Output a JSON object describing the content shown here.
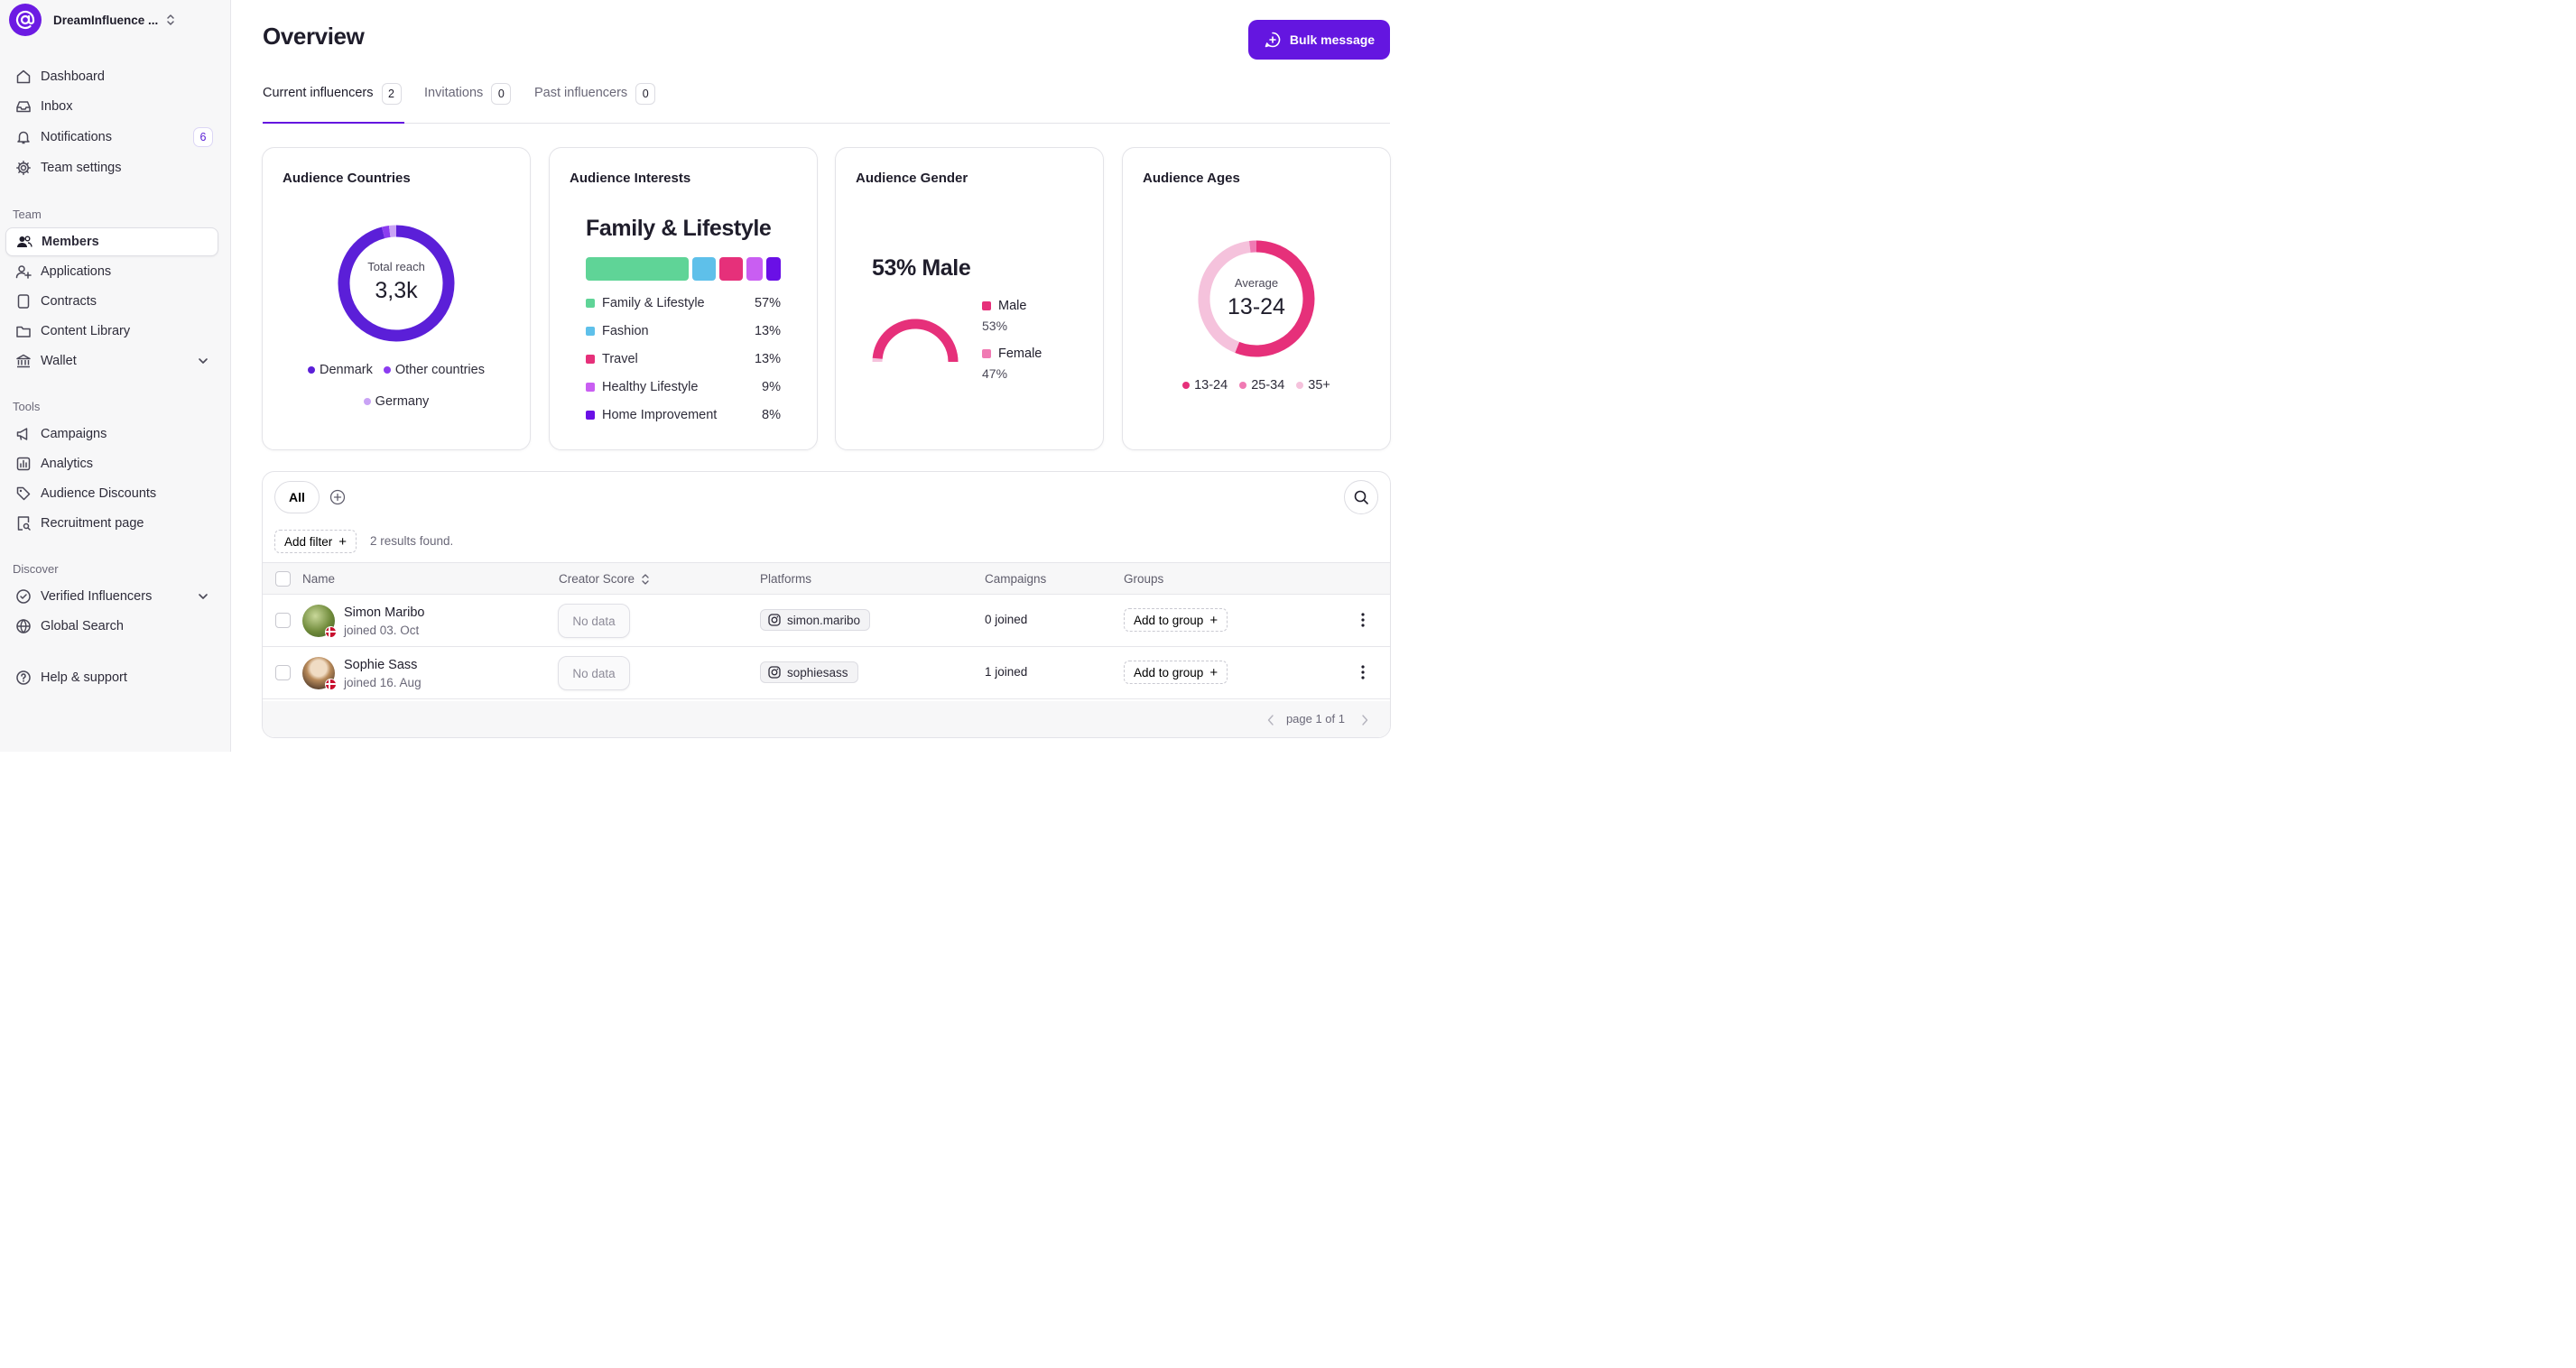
{
  "brand": {
    "name": "DreamInfluence ..."
  },
  "nav": {
    "main": [
      {
        "label": "Dashboard",
        "icon": "home-icon"
      },
      {
        "label": "Inbox",
        "icon": "inbox-icon"
      },
      {
        "label": "Notifications",
        "icon": "bell-icon",
        "badge": "6"
      },
      {
        "label": "Team settings",
        "icon": "gear-icon"
      }
    ],
    "team_label": "Team",
    "team": [
      {
        "label": "Members",
        "icon": "users-icon",
        "active": true
      },
      {
        "label": "Applications",
        "icon": "user-plus-icon"
      },
      {
        "label": "Contracts",
        "icon": "document-icon"
      },
      {
        "label": "Content Library",
        "icon": "folder-icon"
      },
      {
        "label": "Wallet",
        "icon": "bank-icon"
      }
    ],
    "tools_label": "Tools",
    "tools": [
      {
        "label": "Campaigns",
        "icon": "megaphone-icon"
      },
      {
        "label": "Analytics",
        "icon": "bar-chart-icon"
      },
      {
        "label": "Audience Discounts",
        "icon": "tag-icon"
      },
      {
        "label": "Recruitment page",
        "icon": "page-search-icon"
      }
    ],
    "discover_label": "Discover",
    "discover": [
      {
        "label": "Verified Influencers",
        "icon": "verified-icon"
      },
      {
        "label": "Global Search",
        "icon": "globe-icon"
      }
    ],
    "help": {
      "label": "Help & support",
      "icon": "help-icon"
    }
  },
  "header": {
    "title": "Overview",
    "bulk_label": "Bulk message"
  },
  "tabs": [
    {
      "label": "Current influencers",
      "count": "2",
      "active": true
    },
    {
      "label": "Invitations",
      "count": "0"
    },
    {
      "label": "Past influencers",
      "count": "0"
    }
  ],
  "colors": {
    "accent": "#6416e0",
    "purple_dark": "#5b1fd8",
    "purple_mid": "#8b3cf0",
    "purple_light": "#c9a3f5",
    "green": "#5fd497",
    "blue": "#5ec0ea",
    "pink": "#e6307a",
    "magenta": "#c95ef2",
    "violet": "#6a10e6",
    "pink_light": "#f07ab3",
    "pink_pale": "#f5c2dc"
  },
  "cards": {
    "countries": {
      "title": "Audience Countries",
      "center_label": "Total reach",
      "center_value": "3,3k",
      "legend": [
        "Denmark",
        "Other countries",
        "Germany"
      ],
      "shares": [
        0.96,
        0.02,
        0.02
      ]
    },
    "interests": {
      "title": "Audience Interests",
      "headline": "Family & Lifestyle",
      "rows": [
        {
          "label": "Family & Lifestyle",
          "value": "57%",
          "share": 57
        },
        {
          "label": "Fashion",
          "value": "13%",
          "share": 13
        },
        {
          "label": "Travel",
          "value": "13%",
          "share": 13
        },
        {
          "label": "Healthy Lifestyle",
          "value": "9%",
          "share": 9
        },
        {
          "label": "Home Improvement",
          "value": "8%",
          "share": 8
        }
      ]
    },
    "gender": {
      "title": "Audience Gender",
      "headline": "53% Male",
      "male_label": "Male",
      "male_value": "53%",
      "female_label": "Female",
      "female_value": "47%",
      "male_share": 0.53
    },
    "ages": {
      "title": "Audience Ages",
      "center_label": "Average",
      "center_value": "13-24",
      "legend": [
        "13-24",
        "25-34",
        "35+"
      ],
      "shares": [
        0.56,
        0.42,
        0.02
      ]
    }
  },
  "table": {
    "chip_all": "All",
    "add_filter": "Add filter",
    "results": "2 results found.",
    "columns": {
      "name": "Name",
      "score": "Creator Score",
      "platforms": "Platforms",
      "campaigns": "Campaigns",
      "groups": "Groups"
    },
    "rows": [
      {
        "name": "Simon Maribo",
        "joined": "joined 03. Oct",
        "score": "No data",
        "platform": "simon.maribo",
        "campaigns": "0 joined",
        "group_btn": "Add to group"
      },
      {
        "name": "Sophie Sass",
        "joined": "joined 16. Aug",
        "score": "No data",
        "platform": "sophiesass",
        "campaigns": "1 joined",
        "group_btn": "Add to group"
      }
    ],
    "pager": "page 1 of 1"
  }
}
